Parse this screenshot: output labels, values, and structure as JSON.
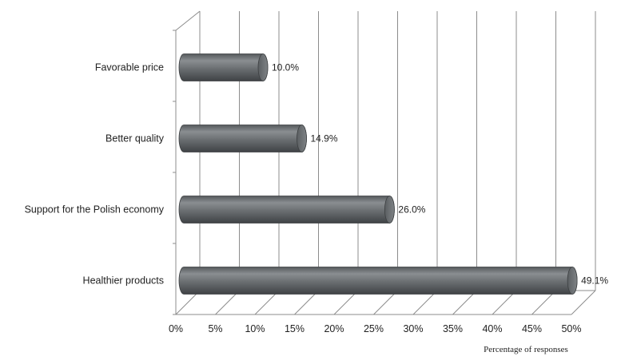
{
  "chart_data": {
    "type": "bar",
    "orientation": "horizontal",
    "style": "3d-cylinder",
    "categories": [
      "Favorable price",
      "Better quality",
      "Support for the Polish economy",
      "Healthier products"
    ],
    "values": [
      10.0,
      14.9,
      26.0,
      49.1
    ],
    "value_labels": [
      "10.0%",
      "14.9%",
      "26.0%",
      "49.1%"
    ],
    "xlim": [
      0,
      50
    ],
    "ticks": [
      0,
      5,
      10,
      15,
      20,
      25,
      30,
      35,
      40,
      45,
      50
    ],
    "tick_labels": [
      "0%",
      "5%",
      "10%",
      "15%",
      "20%",
      "25%",
      "30%",
      "35%",
      "40%",
      "45%",
      "50%"
    ],
    "title": "",
    "xlabel": "Percentage of responses",
    "ylabel": "",
    "grid": true,
    "bar_color": "#6d7174"
  }
}
